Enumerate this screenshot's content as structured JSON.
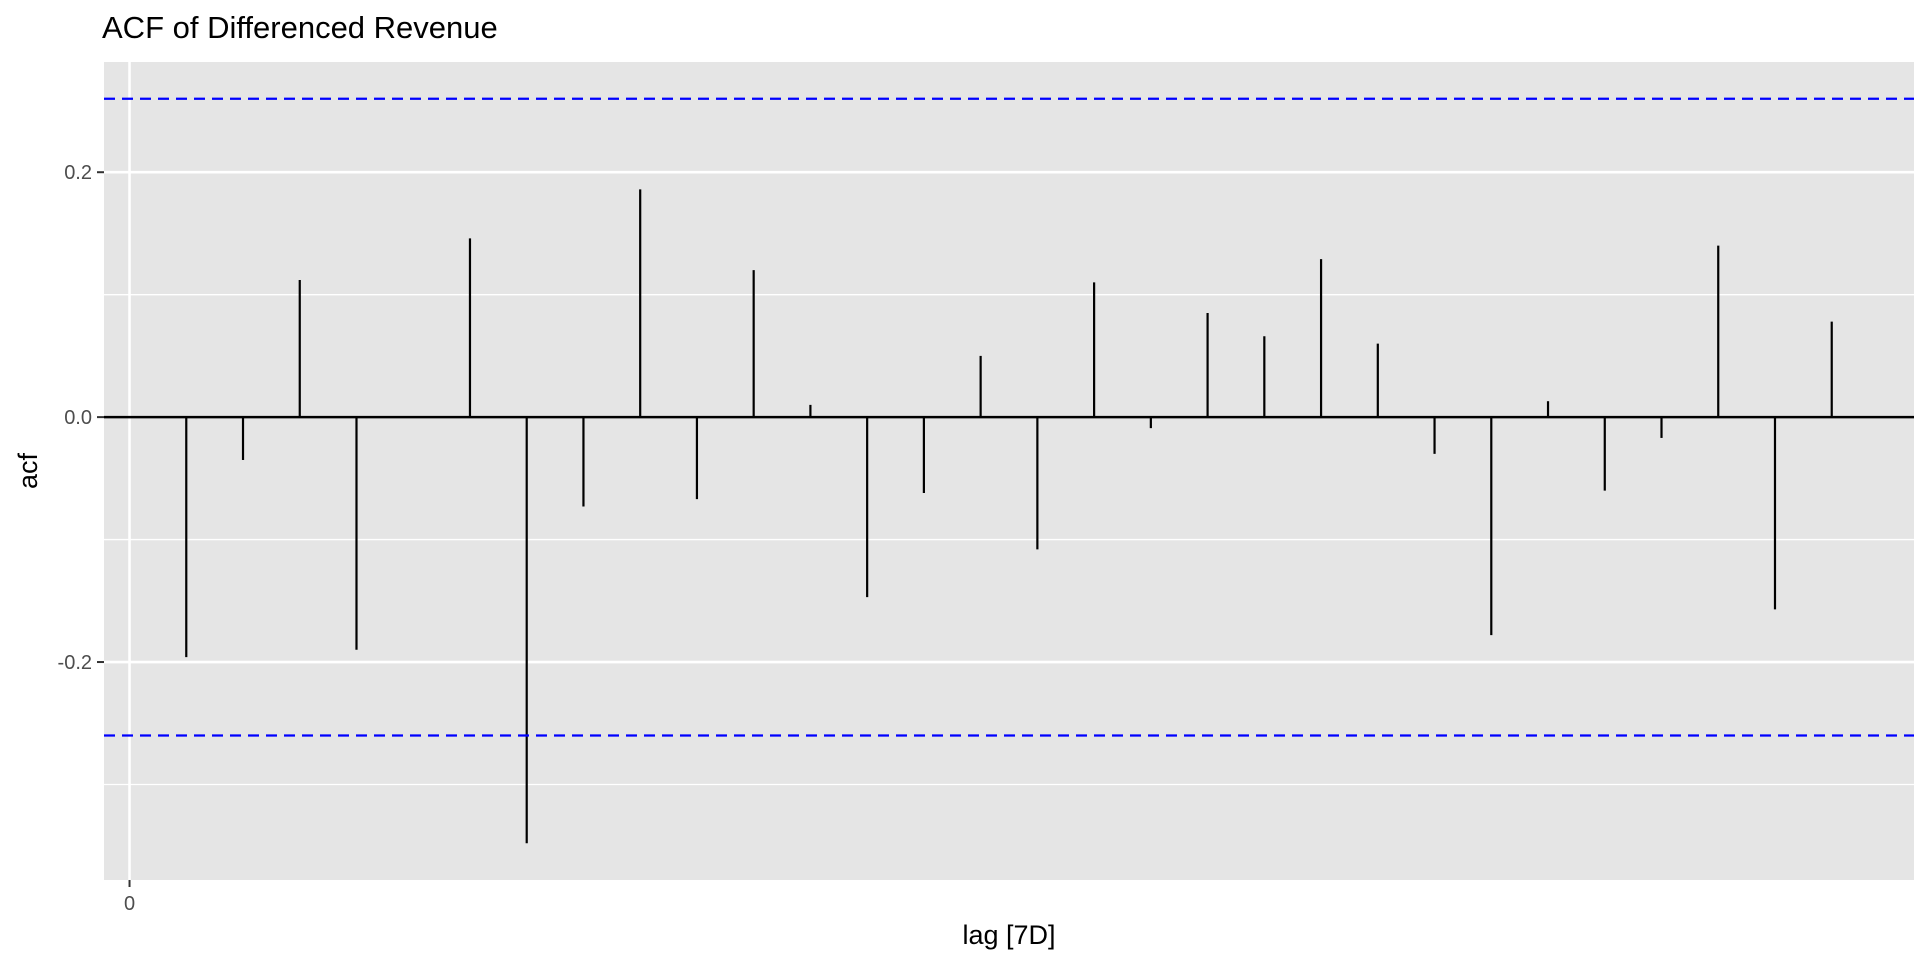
{
  "chart_data": {
    "type": "bar",
    "style": "acf-lollipop",
    "title": "ACF of Differenced Revenue",
    "xlabel": "lag [7D]",
    "ylabel": "acf",
    "lags": [
      1,
      2,
      3,
      4,
      5,
      6,
      7,
      8,
      9,
      10,
      11,
      12,
      13,
      14,
      15,
      16,
      17,
      18,
      19,
      20,
      21,
      22,
      23,
      24,
      25,
      26,
      27,
      28,
      29,
      30,
      31
    ],
    "values": [
      -0.196,
      -0.035,
      0.112,
      -0.19,
      0.0,
      0.146,
      -0.348,
      -0.073,
      0.186,
      -0.067,
      0.12,
      0.01,
      -0.147,
      -0.062,
      0.05,
      -0.108,
      0.11,
      -0.009,
      0.085,
      0.066,
      0.129,
      0.06,
      -0.03,
      -0.178,
      0.013,
      -0.06,
      -0.017,
      0.14,
      -0.157,
      0.078,
      0.0
    ],
    "confidence_bound": 0.26,
    "xlim": [
      -0.45,
      31.45
    ],
    "ylim": [
      -0.378,
      0.29
    ],
    "x_ticks": [
      0
    ],
    "x_tick_labels": [
      "0"
    ],
    "y_ticks": [
      -0.2,
      0.0,
      0.2
    ],
    "y_tick_labels": [
      "-0.2",
      "0.0",
      "0.2"
    ],
    "y_minor_ticks": [
      -0.3,
      -0.1,
      0.1
    ],
    "grid": true,
    "legend": "none",
    "colors": {
      "panel_background": "#E5E5E5",
      "grid": "#FFFFFF",
      "bars": "#000000",
      "confidence_lines": "#0000FF"
    }
  }
}
